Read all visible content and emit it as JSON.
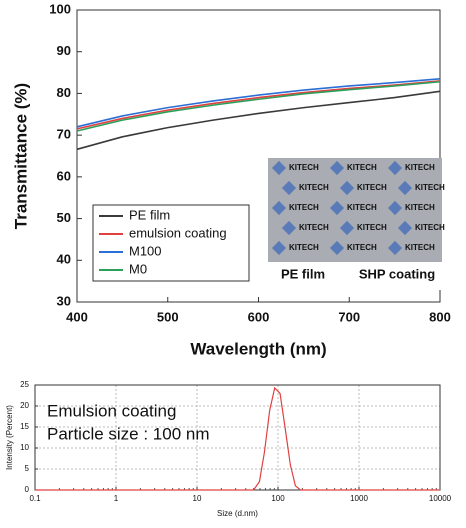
{
  "chart_data": [
    {
      "type": "line",
      "x_label": "Wavelength (nm)",
      "y_label": "Transmittance (%)",
      "x": [
        400,
        450,
        500,
        550,
        600,
        650,
        700,
        750,
        800
      ],
      "series": [
        {
          "name": "PE film",
          "color": "#3a3a3a",
          "values": [
            66.6,
            69.6,
            71.8,
            73.6,
            75.2,
            76.6,
            77.8,
            79.0,
            80.5
          ]
        },
        {
          "name": "emulsion coating",
          "color": "#e04040",
          "values": [
            71.5,
            74.0,
            76.0,
            77.6,
            79.0,
            80.2,
            81.2,
            82.0,
            83.0
          ]
        },
        {
          "name": "M100",
          "color": "#2a6fd6",
          "values": [
            72.0,
            74.6,
            76.6,
            78.2,
            79.6,
            80.8,
            81.8,
            82.6,
            83.5
          ]
        },
        {
          "name": "M0",
          "color": "#2ca05a",
          "values": [
            71.0,
            73.6,
            75.6,
            77.2,
            78.6,
            79.9,
            80.9,
            81.8,
            82.8
          ]
        }
      ],
      "xlim": [
        400,
        800
      ],
      "xticks": [
        400,
        500,
        600,
        700,
        800
      ],
      "ylim": [
        30,
        100
      ],
      "yticks": [
        30,
        40,
        50,
        60,
        70,
        80,
        90,
        100
      ],
      "legend": "lower left",
      "inset_label": "KITECH",
      "annotations": [
        "PE film",
        "SHP coating"
      ]
    },
    {
      "type": "line",
      "x_label": "Size (d.nm)",
      "y_label": "Intensity (Percent)",
      "xscale": "log",
      "x": [
        0.1,
        40,
        50,
        59,
        68,
        79,
        91,
        106,
        122,
        142,
        164,
        190,
        10000
      ],
      "values": [
        0,
        0,
        0,
        2,
        9,
        19,
        24.3,
        23,
        15,
        6,
        1,
        0,
        0
      ],
      "color": "#e04040",
      "xlim": [
        0.1,
        10000
      ],
      "xticks": [
        0.1,
        1,
        10,
        100,
        1000,
        10000
      ],
      "ylim": [
        0,
        25
      ],
      "yticks": [
        0,
        5,
        10,
        15,
        20,
        25
      ],
      "grid": true,
      "annotations": [
        "Emulsion coating",
        "Particle size : 100 nm"
      ]
    }
  ]
}
